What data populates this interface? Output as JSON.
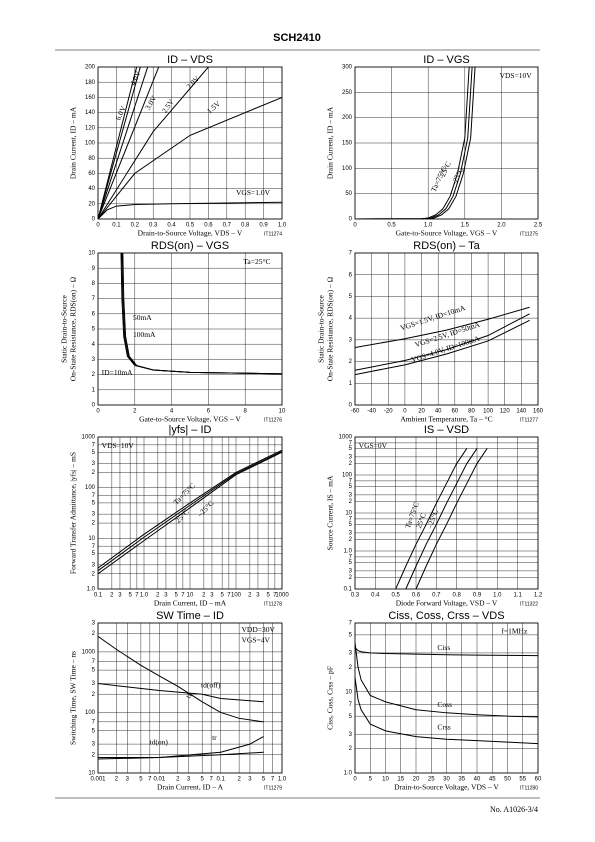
{
  "header": {
    "title": "SCH2410"
  },
  "footer": {
    "text": "No. A1026-3/4"
  },
  "chart_data": [
    {
      "type": "line",
      "title": "ID – VDS",
      "xlabel": "Drain-to-Source Voltage, VDS – V",
      "ylabel": "Drain Current, ID – mA",
      "code": "IT11274",
      "color": "#000",
      "grid": true,
      "xlim": [
        0,
        1
      ],
      "ylim": [
        0,
        200
      ],
      "xticks": [
        0,
        0.1,
        0.2,
        0.3,
        0.4,
        0.5,
        0.6,
        0.7,
        0.8,
        0.9,
        {
          "value": 1,
          "label": "1.0"
        }
      ],
      "yticks": [
        0,
        20,
        40,
        60,
        80,
        100,
        120,
        140,
        160,
        180,
        200
      ],
      "series": [
        {
          "name": "6.0V",
          "x": [
            0,
            0.21
          ],
          "values": [
            0,
            200
          ]
        },
        {
          "name": "4.0V",
          "x": [
            0,
            0.23
          ],
          "values": [
            0,
            200
          ]
        },
        {
          "name": "3.0V",
          "x": [
            0,
            0.27
          ],
          "values": [
            0,
            200
          ]
        },
        {
          "name": "2.5V",
          "x": [
            0,
            0.33
          ],
          "values": [
            0,
            200
          ]
        },
        {
          "name": "2.0V",
          "x": [
            0,
            0.3,
            0.6
          ],
          "values": [
            0,
            115,
            200
          ]
        },
        {
          "name": "1.5V",
          "x": [
            0,
            0.2,
            0.5,
            1
          ],
          "values": [
            0,
            60,
            110,
            160
          ]
        },
        {
          "name": "VGS=1.0V",
          "x": [
            0,
            0.05,
            0.1,
            0.2,
            0.4,
            1
          ],
          "values": [
            0,
            12,
            17,
            19,
            20,
            22
          ]
        }
      ]
    },
    {
      "type": "line",
      "title": "ID – VGS",
      "xlabel": "Gate-to-Source Voltage, VGS – V",
      "ylabel": "Drain Current, ID – mA",
      "code": "IT11275",
      "color": "#000",
      "grid": true,
      "xlim": [
        0,
        2.5
      ],
      "ylim": [
        0,
        300
      ],
      "xticks": [
        0,
        0.5,
        {
          "value": 1,
          "label": "1.0"
        },
        1.5,
        {
          "value": 2,
          "label": "2.0"
        },
        2.5
      ],
      "yticks": [
        0,
        50,
        100,
        150,
        200,
        250,
        300
      ],
      "annotations": [
        "VDS=10V"
      ],
      "series": [
        {
          "name": "Ta=75°C",
          "x": [
            0,
            0.9,
            1,
            1.1,
            1.2,
            1.3,
            1.4,
            1.5,
            1.56
          ],
          "values": [
            0,
            0.5,
            2,
            8,
            20,
            45,
            90,
            160,
            300
          ]
        },
        {
          "name": "25°C",
          "x": [
            0,
            0.94,
            1.04,
            1.14,
            1.24,
            1.34,
            1.44,
            1.54,
            1.6
          ],
          "values": [
            0,
            0.5,
            2,
            8,
            20,
            45,
            90,
            160,
            300
          ]
        },
        {
          "name": "–25°C",
          "x": [
            0,
            0.98,
            1.08,
            1.18,
            1.28,
            1.38,
            1.48,
            1.58,
            1.64
          ],
          "values": [
            0,
            0.5,
            2,
            8,
            20,
            45,
            90,
            160,
            300
          ]
        }
      ]
    },
    {
      "type": "line",
      "title": "RDS(on) – VGS",
      "xlabel": "Gate-to-Source Voltage, VGS – V",
      "ylabel": [
        "Static Drain-to-Source",
        "On-State Resistance, RDS(on) – Ω"
      ],
      "code": "IT11276",
      "color": "#000",
      "grid": true,
      "xlim": [
        0,
        10
      ],
      "ylim": [
        0,
        10
      ],
      "xticks": [
        0,
        2,
        4,
        6,
        8,
        10
      ],
      "yticks": [
        0,
        1,
        2,
        3,
        4,
        5,
        6,
        7,
        8,
        9,
        10
      ],
      "annotations": [
        "Ta=25°C"
      ],
      "series": [
        {
          "name": "50mA",
          "x": [
            1.3,
            1.35,
            1.45,
            1.65,
            2.05,
            3,
            5,
            10
          ],
          "values": [
            10,
            7,
            4.5,
            3.2,
            2.6,
            2.3,
            2.15,
            2.05
          ]
        },
        {
          "name": "100mA",
          "x": [
            1.35,
            1.4,
            1.5,
            1.7,
            2.1,
            3,
            5,
            10
          ],
          "values": [
            10,
            7,
            4.5,
            3.2,
            2.6,
            2.3,
            2.15,
            2.05
          ]
        },
        {
          "name": "ID=10mA",
          "x": [
            1.25,
            1.3,
            1.4,
            1.6,
            2,
            3,
            5,
            10
          ],
          "values": [
            10,
            7,
            4.5,
            3.2,
            2.6,
            2.3,
            2.15,
            2.05
          ]
        }
      ]
    },
    {
      "type": "line",
      "title": "RDS(on) – Ta",
      "xlabel": "Ambient Temperature, Ta – °C",
      "ylabel": [
        "Static Drain-to-Source",
        "On-State Resistance, RDS(on) – Ω"
      ],
      "code": "IT11277",
      "color": "#000",
      "grid": true,
      "xlim": [
        -60,
        160
      ],
      "ylim": [
        0,
        7
      ],
      "xticks": [
        -60,
        -40,
        -20,
        0,
        20,
        40,
        60,
        80,
        100,
        120,
        140,
        160
      ],
      "yticks": [
        0,
        1,
        2,
        3,
        4,
        5,
        6,
        7
      ],
      "series": [
        {
          "name": "VGS=1.5V, ID=10mA",
          "x": [
            -60,
            0,
            50,
            100,
            150
          ],
          "values": [
            2.65,
            3.05,
            3.45,
            3.95,
            4.5
          ]
        },
        {
          "name": "VGS=2.5V, ID=50mA",
          "x": [
            -60,
            0,
            50,
            100,
            150
          ],
          "values": [
            1.6,
            2.05,
            2.55,
            3.2,
            4.2
          ]
        },
        {
          "name": "VGS=4.0V, ID=100mA",
          "x": [
            -60,
            0,
            50,
            100,
            150
          ],
          "values": [
            1.4,
            1.85,
            2.35,
            2.95,
            3.9
          ]
        }
      ]
    },
    {
      "type": "line",
      "title": "|yfs| – ID",
      "xlabel": "Drain Current, ID – mA",
      "ylabel": "Forward Transfer Admittance, |yfs| – mS",
      "code": "IT11278",
      "color": "#000",
      "grid": true,
      "xlog": true,
      "ylog": true,
      "xlim": [
        0.1,
        1000
      ],
      "ylim": [
        1,
        1000
      ],
      "xticks": [
        0.1,
        {
          "value": 0.2,
          "label": "2"
        },
        {
          "value": 0.3,
          "label": "3"
        },
        {
          "value": 0.5,
          "label": "5"
        },
        {
          "value": 0.7,
          "label": "7"
        },
        {
          "value": 1,
          "label": "1.0"
        },
        2,
        3,
        5,
        7,
        10,
        {
          "value": 20,
          "label": "2"
        },
        {
          "value": 30,
          "label": "3"
        },
        {
          "value": 50,
          "label": "5"
        },
        {
          "value": 70,
          "label": "7"
        },
        100,
        {
          "value": 200,
          "label": "2"
        },
        {
          "value": 300,
          "label": "3"
        },
        {
          "value": 500,
          "label": "5"
        },
        {
          "value": 700,
          "label": "7"
        },
        1000
      ],
      "yticks": [
        {
          "value": 1,
          "label": "1.0"
        },
        2,
        3,
        5,
        7,
        10,
        {
          "value": 20,
          "label": "2"
        },
        {
          "value": 30,
          "label": "3"
        },
        {
          "value": 50,
          "label": "5"
        },
        {
          "value": 70,
          "label": "7"
        },
        100,
        {
          "value": 200,
          "label": "2"
        },
        {
          "value": 300,
          "label": "3"
        },
        {
          "value": 500,
          "label": "5"
        },
        {
          "value": 700,
          "label": "7"
        },
        1000
      ],
      "annotations": [
        "VDS=10V"
      ],
      "series": [
        {
          "name": "Ta=75°C",
          "x": [
            0.1,
            1,
            10,
            100,
            1000
          ],
          "values": [
            2.6,
            12,
            50,
            200,
            550
          ]
        },
        {
          "name": "25°C",
          "x": [
            0.1,
            1,
            10,
            100,
            1000
          ],
          "values": [
            2.3,
            10.5,
            45,
            190,
            520
          ]
        },
        {
          "name": "–25°C",
          "x": [
            0.1,
            1,
            10,
            100,
            1000
          ],
          "values": [
            2,
            9,
            40,
            180,
            500
          ]
        }
      ]
    },
    {
      "type": "line",
      "title": "IS – VSD",
      "xlabel": "Diode Forward Voltage, VSD – V",
      "ylabel": "Source Current, IS – mA",
      "code": "IT11322",
      "color": "#000",
      "grid": true,
      "ylog": true,
      "xlim": [
        0.3,
        1.2
      ],
      "ylim": [
        0.1,
        1000
      ],
      "xticks": [
        0.3,
        0.4,
        0.5,
        0.6,
        0.7,
        0.8,
        0.9,
        {
          "value": 1,
          "label": "1.0"
        },
        1.1,
        1.2
      ],
      "yticks": [
        0.1,
        {
          "value": 0.2,
          "label": "2"
        },
        {
          "value": 0.3,
          "label": "3"
        },
        {
          "value": 0.5,
          "label": "5"
        },
        {
          "value": 0.7,
          "label": "7"
        },
        {
          "value": 1,
          "label": "1.0"
        },
        2,
        3,
        5,
        7,
        10,
        {
          "value": 20,
          "label": "2"
        },
        {
          "value": 30,
          "label": "3"
        },
        {
          "value": 50,
          "label": "5"
        },
        {
          "value": 70,
          "label": "7"
        },
        100,
        {
          "value": 200,
          "label": "2"
        },
        {
          "value": 300,
          "label": "3"
        },
        {
          "value": 500,
          "label": "5"
        },
        {
          "value": 700,
          "label": "7"
        },
        1000
      ],
      "annotations": [
        "VGS=0V"
      ],
      "series": [
        {
          "name": "Ta=75°C",
          "x": [
            0.5,
            0.55,
            0.6,
            0.65,
            0.7,
            0.75,
            0.8,
            0.85
          ],
          "values": [
            0.1,
            0.4,
            1.5,
            5,
            18,
            60,
            200,
            500
          ]
        },
        {
          "name": "25°C",
          "x": [
            0.55,
            0.6,
            0.65,
            0.7,
            0.75,
            0.8,
            0.85,
            0.9
          ],
          "values": [
            0.1,
            0.4,
            1.5,
            5,
            18,
            60,
            200,
            500
          ]
        },
        {
          "name": "–25°C",
          "x": [
            0.6,
            0.65,
            0.7,
            0.75,
            0.8,
            0.85,
            0.9,
            0.95
          ],
          "values": [
            0.1,
            0.4,
            1.5,
            5,
            18,
            60,
            200,
            500
          ]
        }
      ]
    },
    {
      "type": "line",
      "title": "SW Time – ID",
      "xlabel": "Drain Current, ID – A",
      "ylabel": "Switching Time, SW Time – ns",
      "code": "IT11279",
      "color": "#000",
      "grid": true,
      "xlog": true,
      "ylog": true,
      "xlim": [
        0.001,
        1
      ],
      "ylim": [
        10,
        3000
      ],
      "xticks": [
        0.001,
        {
          "value": 0.002,
          "label": "2"
        },
        {
          "value": 0.003,
          "label": "3"
        },
        {
          "value": 0.005,
          "label": "5"
        },
        {
          "value": 0.007,
          "label": "7"
        },
        0.01,
        {
          "value": 0.02,
          "label": "2"
        },
        {
          "value": 0.03,
          "label": "3"
        },
        {
          "value": 0.05,
          "label": "5"
        },
        {
          "value": 0.07,
          "label": "7"
        },
        0.1,
        {
          "value": 0.2,
          "label": "2"
        },
        {
          "value": 0.3,
          "label": "3"
        },
        {
          "value": 0.5,
          "label": "5"
        },
        {
          "value": 0.7,
          "label": "7"
        },
        {
          "value": 1,
          "label": "1.0"
        }
      ],
      "yticks": [
        10,
        {
          "value": 20,
          "label": "2"
        },
        {
          "value": 30,
          "label": "3"
        },
        {
          "value": 50,
          "label": "5"
        },
        {
          "value": 70,
          "label": "7"
        },
        100,
        {
          "value": 200,
          "label": "2"
        },
        {
          "value": 300,
          "label": "3"
        },
        {
          "value": 500,
          "label": "5"
        },
        {
          "value": 700,
          "label": "7"
        },
        1000,
        {
          "value": 2000,
          "label": "2"
        },
        {
          "value": 3000,
          "label": "3"
        }
      ],
      "annotations": [
        "VDD=30V",
        "VGS=4V"
      ],
      "series": [
        {
          "name": "td(off)",
          "x": [
            0.001,
            0.01,
            0.05,
            0.1,
            0.5
          ],
          "values": [
            300,
            230,
            200,
            170,
            150
          ]
        },
        {
          "name": "tf",
          "x": [
            0.001,
            0.002,
            0.005,
            0.01,
            0.02,
            0.05,
            0.1,
            0.2,
            0.5
          ],
          "values": [
            1800,
            1100,
            600,
            400,
            270,
            150,
            100,
            80,
            70
          ]
        },
        {
          "name": "td(on)",
          "x": [
            0.001,
            0.01,
            0.1,
            0.5
          ],
          "values": [
            18,
            18,
            20,
            22
          ]
        },
        {
          "name": "tr",
          "x": [
            0.001,
            0.01,
            0.1,
            0.3,
            0.5
          ],
          "values": [
            17,
            18,
            22,
            30,
            40
          ]
        }
      ]
    },
    {
      "type": "line",
      "title": "Ciss, Coss, Crss – VDS",
      "xlabel": "Drain-to-Source Voltage, VDS – V",
      "ylabel": "Ciss, Coss, Crss – pF",
      "code": "IT11280",
      "color": "#000",
      "grid": true,
      "ylog": true,
      "xlim": [
        0,
        60
      ],
      "ylim": [
        1,
        70
      ],
      "xticks": [
        0,
        5,
        10,
        15,
        20,
        25,
        30,
        35,
        40,
        45,
        50,
        55,
        60
      ],
      "yticks": [
        {
          "value": 1,
          "label": "1.0"
        },
        2,
        3,
        5,
        7,
        10,
        {
          "value": 20,
          "label": "2"
        },
        {
          "value": 30,
          "label": "3"
        },
        {
          "value": 50,
          "label": "5"
        },
        {
          "value": 70,
          "label": "7"
        }
      ],
      "annotations": [
        "f=1MHz"
      ],
      "series": [
        {
          "name": "Ciss",
          "x": [
            0,
            1,
            2,
            5,
            10,
            20,
            30,
            40,
            50,
            60
          ],
          "values": [
            35,
            32,
            31,
            30,
            29.5,
            29,
            28.5,
            28.2,
            28,
            27.8
          ]
        },
        {
          "name": "Coss",
          "x": [
            0,
            1,
            2,
            5,
            10,
            20,
            30,
            40,
            50,
            60
          ],
          "values": [
            40,
            20,
            14,
            9,
            7.5,
            6,
            5.5,
            5.2,
            5,
            4.9
          ]
        },
        {
          "name": "Crss",
          "x": [
            0,
            1,
            2,
            5,
            10,
            20,
            30,
            40,
            50,
            60
          ],
          "values": [
            15,
            8,
            6,
            4,
            3.3,
            2.8,
            2.6,
            2.5,
            2.4,
            2.3
          ]
        }
      ]
    }
  ]
}
